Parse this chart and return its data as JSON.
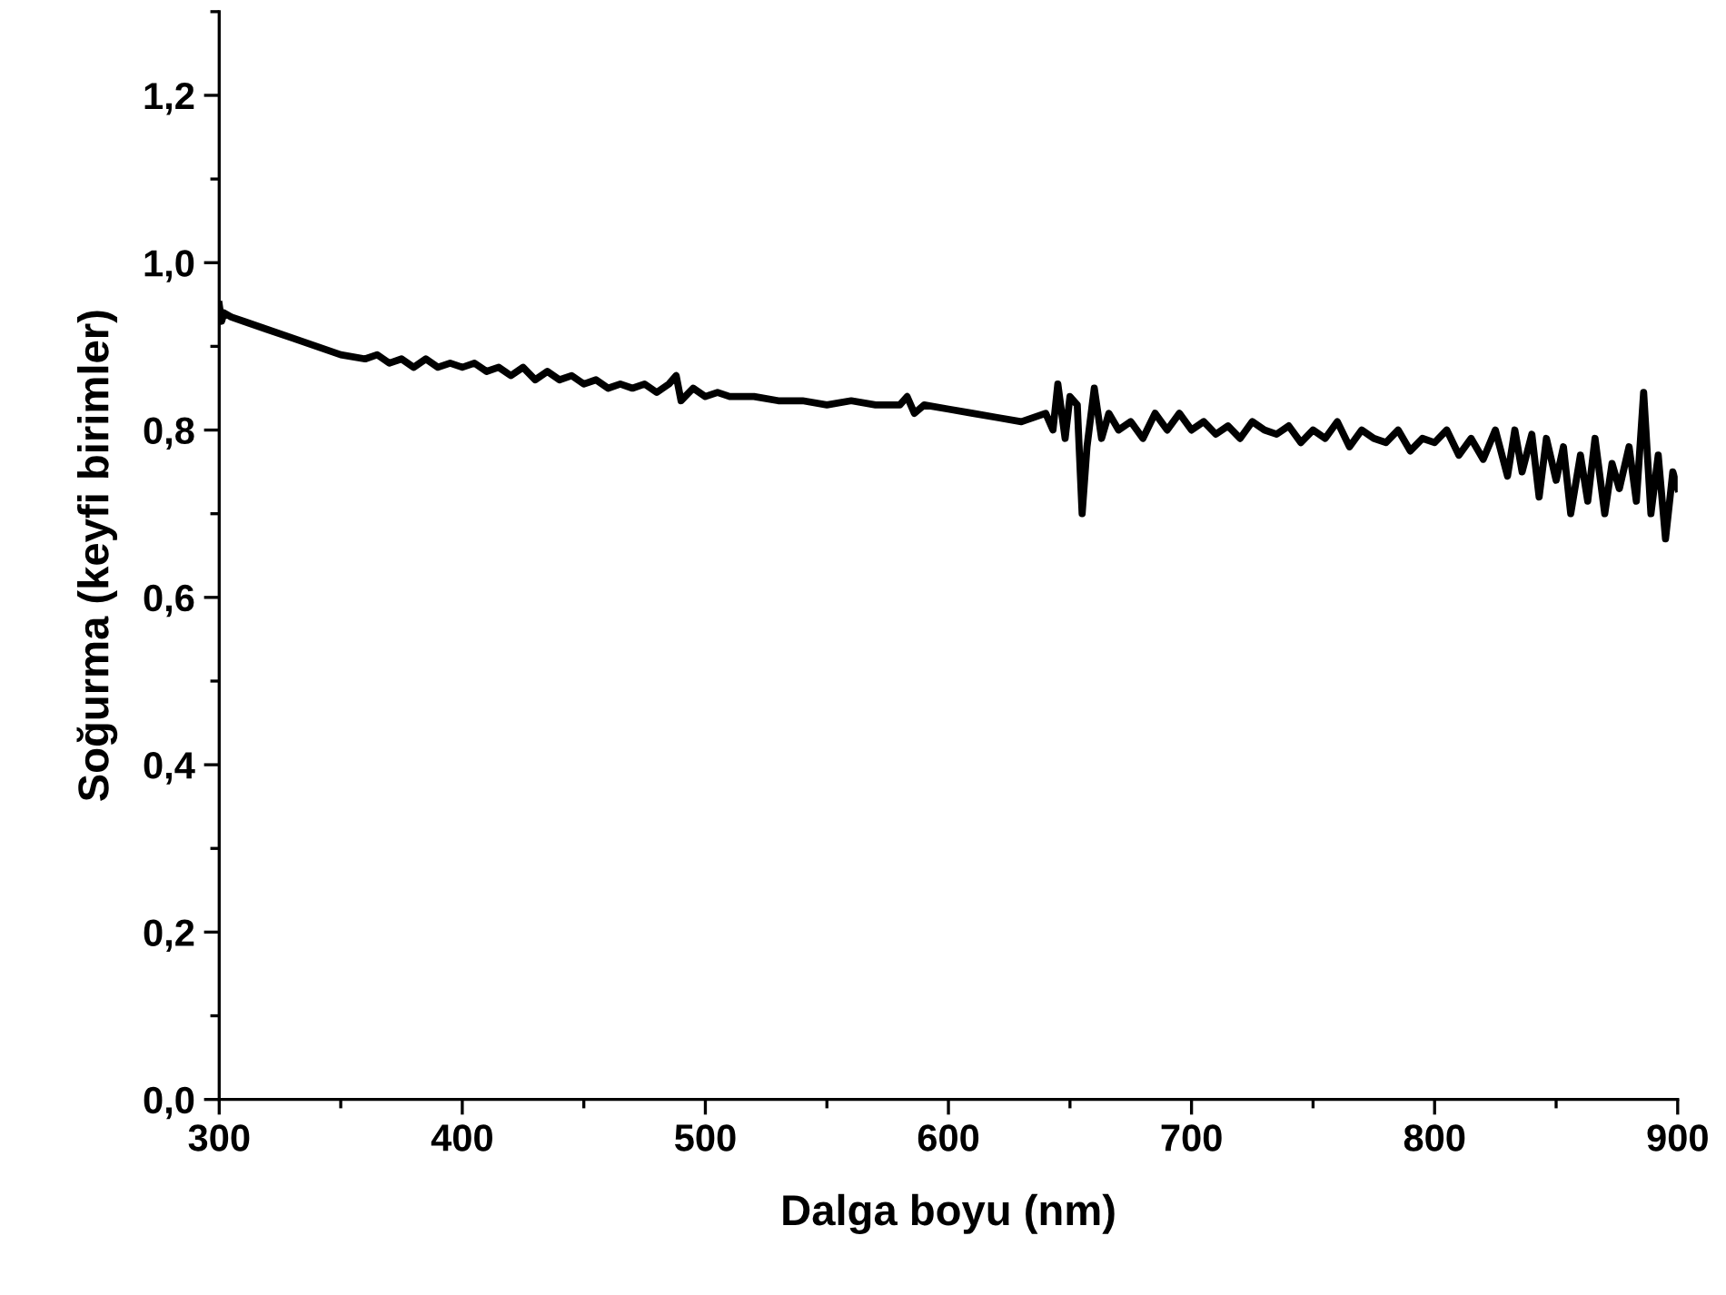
{
  "chart_data": {
    "type": "line",
    "xlabel": "Dalga boyu (nm)",
    "ylabel": "Soğurma (keyfi birimler)",
    "xlim": [
      300,
      900
    ],
    "ylim": [
      0,
      1.3
    ],
    "xticks": [
      300,
      400,
      500,
      600,
      700,
      800,
      900
    ],
    "yticks": [
      {
        "value": 0,
        "label": "0,0"
      },
      {
        "value": 0.2,
        "label": "0,2"
      },
      {
        "value": 0.4,
        "label": "0,4"
      },
      {
        "value": 0.6,
        "label": "0,6"
      },
      {
        "value": 0.8,
        "label": "0,8"
      },
      {
        "value": 1.0,
        "label": "1,0"
      },
      {
        "value": 1.2,
        "label": "1,2"
      }
    ],
    "grid": false,
    "marker": "none",
    "line_style": "solid",
    "series": [
      {
        "color": "#000000",
        "x": [
          300,
          301,
          302,
          305,
          310,
          320,
          330,
          340,
          350,
          360,
          365,
          370,
          375,
          380,
          385,
          390,
          395,
          400,
          405,
          410,
          415,
          420,
          425,
          430,
          435,
          440,
          445,
          450,
          455,
          460,
          465,
          470,
          475,
          480,
          485,
          488,
          490,
          495,
          500,
          505,
          510,
          520,
          530,
          540,
          550,
          560,
          570,
          580,
          583,
          586,
          590,
          600,
          610,
          620,
          630,
          640,
          643,
          645,
          648,
          650,
          653,
          655,
          657,
          660,
          663,
          666,
          670,
          675,
          680,
          685,
          690,
          695,
          700,
          705,
          710,
          715,
          720,
          725,
          730,
          735,
          740,
          745,
          750,
          755,
          760,
          765,
          770,
          775,
          780,
          785,
          790,
          795,
          800,
          805,
          810,
          815,
          820,
          825,
          830,
          833,
          836,
          840,
          843,
          846,
          850,
          853,
          856,
          860,
          863,
          866,
          870,
          873,
          876,
          880,
          883,
          886,
          889,
          892,
          895,
          898,
          900
        ],
        "values": [
          0.95,
          0.93,
          0.94,
          0.935,
          0.93,
          0.92,
          0.91,
          0.9,
          0.89,
          0.885,
          0.89,
          0.88,
          0.885,
          0.875,
          0.885,
          0.875,
          0.88,
          0.875,
          0.88,
          0.87,
          0.875,
          0.865,
          0.875,
          0.86,
          0.87,
          0.86,
          0.865,
          0.855,
          0.86,
          0.85,
          0.855,
          0.85,
          0.855,
          0.845,
          0.855,
          0.865,
          0.835,
          0.85,
          0.84,
          0.845,
          0.84,
          0.84,
          0.835,
          0.835,
          0.83,
          0.835,
          0.83,
          0.83,
          0.84,
          0.82,
          0.83,
          0.825,
          0.82,
          0.815,
          0.81,
          0.82,
          0.8,
          0.855,
          0.79,
          0.84,
          0.83,
          0.7,
          0.78,
          0.85,
          0.79,
          0.82,
          0.8,
          0.81,
          0.79,
          0.82,
          0.8,
          0.82,
          0.8,
          0.81,
          0.795,
          0.805,
          0.79,
          0.81,
          0.8,
          0.795,
          0.805,
          0.785,
          0.8,
          0.79,
          0.81,
          0.78,
          0.8,
          0.79,
          0.785,
          0.8,
          0.775,
          0.79,
          0.785,
          0.8,
          0.77,
          0.79,
          0.765,
          0.8,
          0.745,
          0.8,
          0.75,
          0.795,
          0.72,
          0.79,
          0.74,
          0.78,
          0.7,
          0.77,
          0.715,
          0.79,
          0.7,
          0.76,
          0.73,
          0.78,
          0.715,
          0.845,
          0.7,
          0.77,
          0.67,
          0.75,
          0.73
        ]
      }
    ]
  }
}
